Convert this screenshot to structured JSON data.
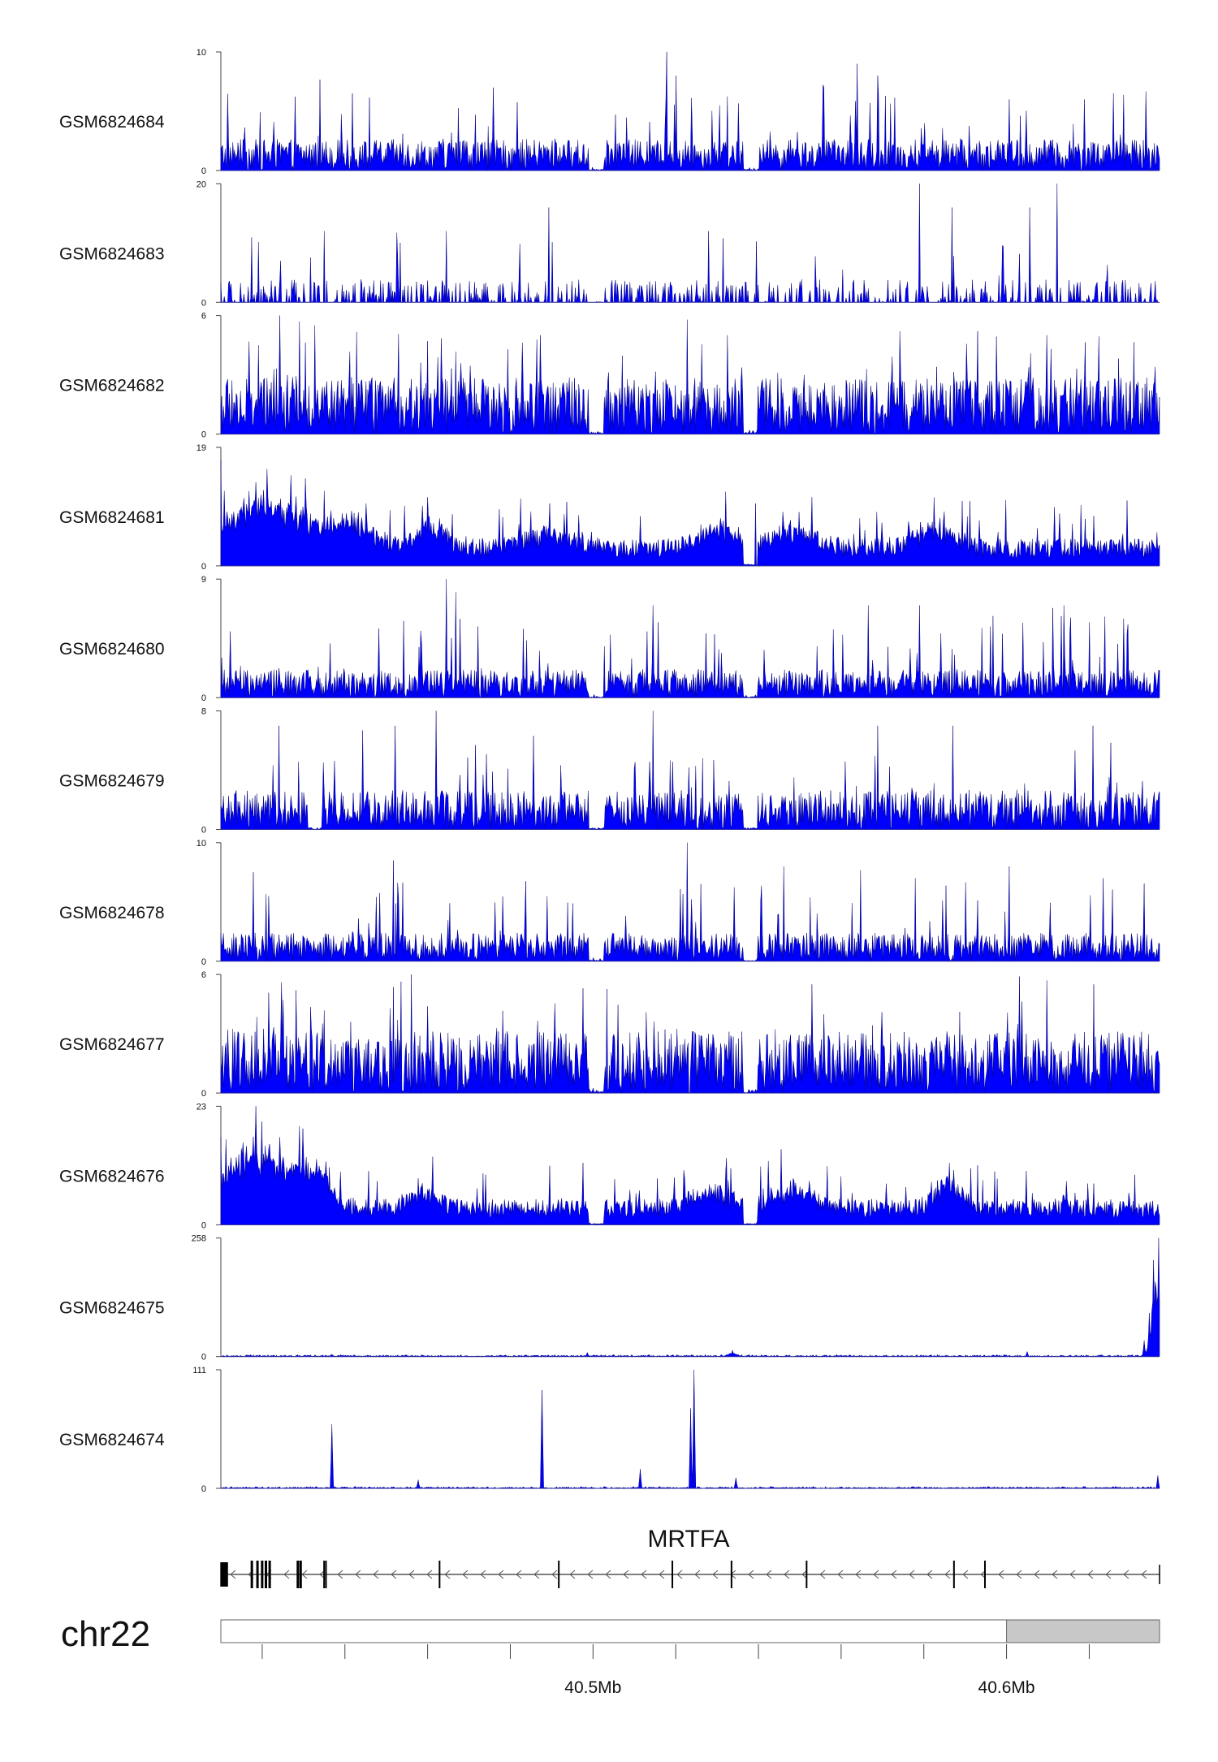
{
  "chart_data": {
    "type": "area",
    "title": "",
    "color": "#0000ff",
    "outline_color": "#00007a",
    "region": {
      "chrom": "chr22",
      "start_mb": 40.41,
      "end_mb": 40.637
    },
    "tracks": [
      {
        "name": "GSM6824684",
        "max": 10,
        "min": 0,
        "style": "spiky",
        "level": 2.2,
        "gaps": [
          0.4,
          0.564
        ],
        "peaks": [
          [
            0.475,
            10
          ],
          [
            0.485,
            8
          ],
          [
            0.7,
            8
          ],
          [
            0.678,
            9
          ],
          [
            0.29,
            7
          ],
          [
            0.14,
            6.5
          ],
          [
            0.84,
            6
          ],
          [
            0.92,
            6
          ]
        ]
      },
      {
        "name": "GSM6824683",
        "max": 20,
        "min": 0,
        "style": "sparse",
        "level": 3.0,
        "gaps": [
          0.4
        ],
        "peaks": [
          [
            0.349,
            16
          ],
          [
            0.744,
            20
          ],
          [
            0.891,
            20
          ],
          [
            0.862,
            16
          ],
          [
            0.779,
            16
          ],
          [
            0.24,
            12
          ],
          [
            0.11,
            12
          ],
          [
            0.52,
            12
          ]
        ]
      },
      {
        "name": "GSM6824682",
        "max": 6,
        "min": 0,
        "style": "dense",
        "level": 2.4,
        "gaps": [
          0.4,
          0.564
        ],
        "peaks": [
          [
            0.063,
            6
          ],
          [
            0.1,
            5.5
          ],
          [
            0.34,
            5
          ],
          [
            0.54,
            5
          ],
          [
            0.723,
            5.2
          ],
          [
            0.88,
            5
          ],
          [
            0.04,
            4.5
          ]
        ]
      },
      {
        "name": "GSM6824681",
        "max": 19,
        "min": 0,
        "style": "broad",
        "level": 3.5,
        "gaps": [
          0.564
        ],
        "peaks": [
          [
            0.0,
            17
          ],
          [
            0.03,
            12
          ],
          [
            0.05,
            11
          ],
          [
            0.09,
            14
          ],
          [
            0.11,
            12
          ],
          [
            0.22,
            11
          ],
          [
            0.35,
            10
          ],
          [
            0.57,
            10
          ],
          [
            0.63,
            11
          ],
          [
            0.76,
            11
          ],
          [
            0.93,
            8
          ]
        ],
        "bumps": [
          [
            0.05,
            0.06,
            6.5
          ],
          [
            0.14,
            0.03,
            3.5
          ],
          [
            0.225,
            0.02,
            3.5
          ],
          [
            0.35,
            0.04,
            2.0
          ],
          [
            0.53,
            0.03,
            2.8
          ],
          [
            0.61,
            0.03,
            2.8
          ],
          [
            0.76,
            0.03,
            3.0
          ]
        ]
      },
      {
        "name": "GSM6824680",
        "max": 9,
        "min": 0,
        "style": "dense",
        "level": 1.8,
        "gaps": [
          0.4,
          0.564
        ],
        "peaks": [
          [
            0.24,
            9
          ],
          [
            0.25,
            8
          ],
          [
            0.46,
            7
          ],
          [
            0.69,
            7
          ],
          [
            0.744,
            7
          ],
          [
            0.898,
            7
          ],
          [
            0.962,
            6
          ]
        ]
      },
      {
        "name": "GSM6824679",
        "max": 8,
        "min": 0,
        "style": "dense",
        "level": 2.2,
        "gaps": [
          0.1,
          0.4,
          0.564
        ],
        "peaks": [
          [
            0.229,
            8
          ],
          [
            0.46,
            8
          ],
          [
            0.186,
            7
          ],
          [
            0.062,
            7
          ],
          [
            0.7,
            7
          ],
          [
            0.78,
            7
          ],
          [
            0.929,
            7
          ]
        ]
      },
      {
        "name": "GSM6824678",
        "max": 10,
        "min": 0,
        "style": "dense",
        "level": 2.0,
        "gaps": [
          0.4,
          0.564
        ],
        "peaks": [
          [
            0.497,
            10
          ],
          [
            0.184,
            8.5
          ],
          [
            0.035,
            7.5
          ],
          [
            0.6,
            8
          ],
          [
            0.84,
            8
          ],
          [
            0.74,
            7
          ],
          [
            0.94,
            7
          ]
        ]
      },
      {
        "name": "GSM6824677",
        "max": 6,
        "min": 0,
        "style": "dense",
        "level": 2.6,
        "gaps": [
          0.4,
          0.564
        ],
        "peaks": [
          [
            0.065,
            5.6
          ],
          [
            0.203,
            6
          ],
          [
            0.08,
            5.2
          ],
          [
            0.63,
            5.5
          ],
          [
            0.851,
            5.9
          ],
          [
            0.88,
            5.7
          ],
          [
            0.93,
            5.5
          ]
        ]
      },
      {
        "name": "GSM6824676",
        "max": 23,
        "min": 0,
        "style": "broad",
        "level": 4.0,
        "gaps": [
          0.4,
          0.564
        ],
        "peaks": [
          [
            0.0,
            17
          ],
          [
            0.037,
            23
          ],
          [
            0.044,
            20
          ],
          [
            0.063,
            17
          ],
          [
            0.21,
            9
          ],
          [
            0.35,
            7
          ],
          [
            0.61,
            9
          ],
          [
            0.776,
            12
          ],
          [
            0.93,
            8
          ]
        ],
        "bumps": [
          [
            0.04,
            0.05,
            10
          ],
          [
            0.1,
            0.02,
            5.0
          ],
          [
            0.215,
            0.02,
            3.0
          ],
          [
            0.52,
            0.03,
            3.0
          ],
          [
            0.61,
            0.03,
            3.5
          ],
          [
            0.776,
            0.02,
            4.5
          ]
        ]
      },
      {
        "name": "GSM6824675",
        "max": 258,
        "min": 0,
        "style": "low",
        "level": 1.5,
        "gaps": [],
        "peaks": [
          [
            0.545,
            14
          ],
          [
            0.39,
            9
          ],
          [
            0.859,
            11
          ],
          [
            0.118,
            5
          ],
          [
            0.999,
            258
          ],
          [
            0.994,
            210
          ],
          [
            0.989,
            95
          ],
          [
            0.984,
            35
          ]
        ],
        "bumps": [
          [
            0.545,
            0.006,
            6
          ],
          [
            0.997,
            0.007,
            140
          ]
        ]
      },
      {
        "name": "GSM6824674",
        "max": 111,
        "min": 0,
        "style": "low",
        "level": 2.5,
        "gaps": [],
        "peaks": [
          [
            0.118,
            60
          ],
          [
            0.342,
            92
          ],
          [
            0.504,
            111
          ],
          [
            0.5,
            75
          ],
          [
            0.447,
            18
          ],
          [
            0.21,
            8
          ],
          [
            0.549,
            10
          ],
          [
            0.998,
            12
          ]
        ]
      }
    ],
    "gene": {
      "name": "MRTFA",
      "strand": "-",
      "exons": [
        0.002,
        0.005,
        0.033,
        0.039,
        0.044,
        0.048,
        0.052,
        0.082,
        0.085,
        0.11,
        0.112,
        0.233,
        0.36,
        0.481,
        0.544,
        0.624,
        0.781,
        0.814
      ]
    },
    "chrom_label": "chr22",
    "highlight_region": [
      40.6,
      40.637
    ],
    "x_tick_values": [
      40.42,
      40.44,
      40.46,
      40.48,
      40.5,
      40.52,
      40.54,
      40.56,
      40.58,
      40.6,
      40.62
    ],
    "x_tick_labels": [
      {
        "value": 40.5,
        "label": "40.5Mb"
      },
      {
        "value": 40.6,
        "label": "40.6Mb"
      }
    ]
  }
}
